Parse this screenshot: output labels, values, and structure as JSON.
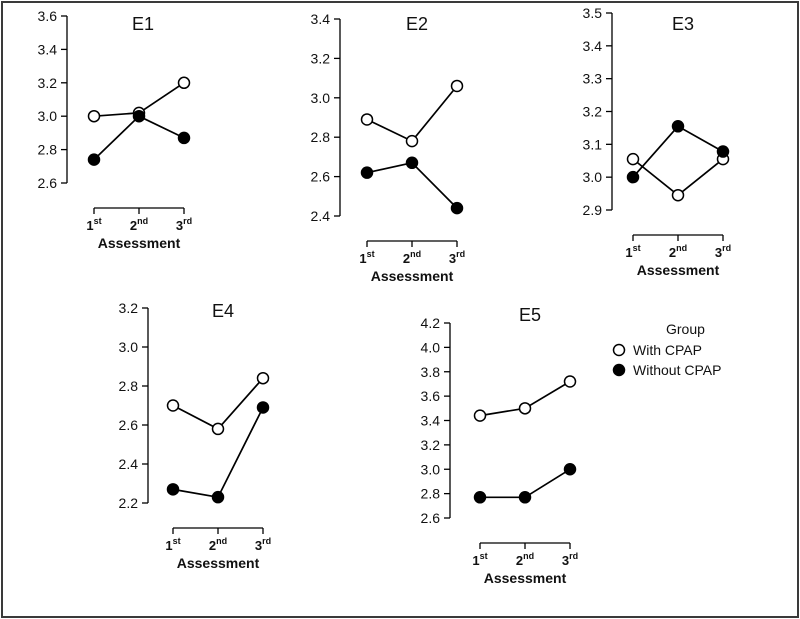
{
  "chart_data": [
    {
      "type": "line",
      "title": "E1",
      "categories": [
        "1st",
        "2nd",
        "3rd"
      ],
      "xlabel": "Assessment",
      "ylabel": "",
      "ylim": [
        2.6,
        3.6
      ],
      "yticks": [
        "2.6",
        "2.8",
        "3.0",
        "3.2",
        "3.4",
        "3.6"
      ],
      "series": [
        {
          "name": "With CPAP",
          "values": [
            3.0,
            3.02,
            3.2
          ]
        },
        {
          "name": "Without CPAP",
          "values": [
            2.74,
            3.0,
            2.87
          ]
        }
      ]
    },
    {
      "type": "line",
      "title": "E2",
      "categories": [
        "1st",
        "2nd",
        "3rd"
      ],
      "xlabel": "Assessment",
      "ylabel": "",
      "ylim": [
        2.4,
        3.4
      ],
      "yticks": [
        "2.4",
        "2.6",
        "2.8",
        "3.0",
        "3.2",
        "3.4"
      ],
      "series": [
        {
          "name": "With CPAP",
          "values": [
            2.89,
            2.78,
            3.06
          ]
        },
        {
          "name": "Without CPAP",
          "values": [
            2.62,
            2.67,
            2.44
          ]
        }
      ]
    },
    {
      "type": "line",
      "title": "E3",
      "categories": [
        "1st",
        "2nd",
        "3rd"
      ],
      "xlabel": "Assessment",
      "ylabel": "",
      "ylim": [
        2.9,
        3.5
      ],
      "yticks": [
        "2.9",
        "3.0",
        "3.1",
        "3.2",
        "3.3",
        "3.4",
        "3.5"
      ],
      "series": [
        {
          "name": "With CPAP",
          "values": [
            3.055,
            2.945,
            3.055
          ]
        },
        {
          "name": "Without CPAP",
          "values": [
            3.0,
            3.155,
            3.078
          ]
        }
      ]
    },
    {
      "type": "line",
      "title": "E4",
      "categories": [
        "1st",
        "2nd",
        "3rd"
      ],
      "xlabel": "Assessment",
      "ylabel": "",
      "ylim": [
        2.2,
        3.2
      ],
      "yticks": [
        "2.2",
        "2.4",
        "2.6",
        "2.8",
        "3.0",
        "3.2"
      ],
      "series": [
        {
          "name": "With CPAP",
          "values": [
            2.7,
            2.58,
            2.84
          ]
        },
        {
          "name": "Without CPAP",
          "values": [
            2.27,
            2.23,
            2.69
          ]
        }
      ]
    },
    {
      "type": "line",
      "title": "E5",
      "categories": [
        "1st",
        "2nd",
        "3rd"
      ],
      "xlabel": "Assessment",
      "ylabel": "",
      "ylim": [
        2.6,
        4.2
      ],
      "yticks": [
        "2.6",
        "2.8",
        "3.0",
        "3.2",
        "3.4",
        "3.6",
        "3.8",
        "4.0",
        "4.2"
      ],
      "series": [
        {
          "name": "With CPAP",
          "values": [
            3.44,
            3.5,
            3.72
          ]
        },
        {
          "name": "Without CPAP",
          "values": [
            2.77,
            2.77,
            3.0
          ]
        }
      ]
    }
  ],
  "legend": {
    "title": "Group",
    "placement": "right",
    "entries": [
      {
        "label": "With CPAP",
        "marker": "open-circle"
      },
      {
        "label": "Without CPAP",
        "marker": "filled-circle"
      }
    ]
  },
  "colors": {
    "line": "#000000",
    "open_fill": "#ffffff",
    "filled": "#000000",
    "frame": "#3a3a3a"
  }
}
